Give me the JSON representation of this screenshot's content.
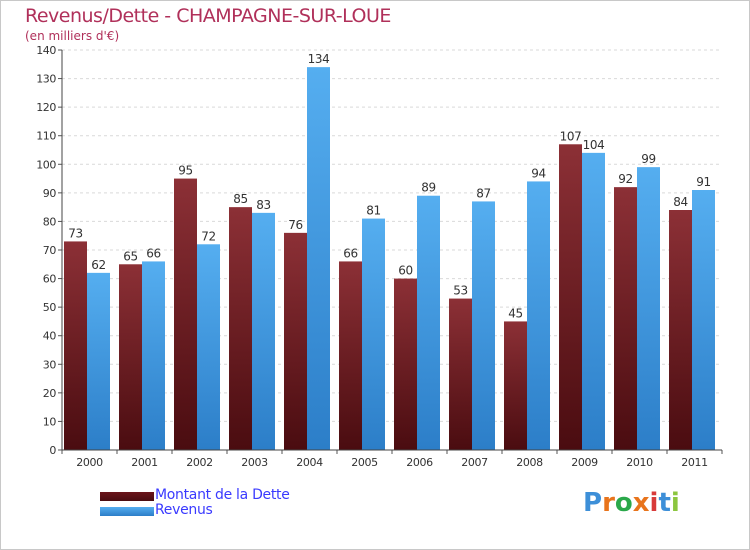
{
  "title": "Revenus/Dette - CHAMPAGNE-SUR-LOUE",
  "subtitle": "(en milliers d'€)",
  "colors": {
    "dette": "#7a1f24",
    "revenus": "#4aa3e8",
    "title": "#b0305a",
    "legend_text": "#3a3aff"
  },
  "chart_data": {
    "type": "bar",
    "title": "Revenus/Dette - CHAMPAGNE-SUR-LOUE",
    "ylabel": "(en milliers d'€)",
    "xlabel": "",
    "ylim": [
      0,
      140
    ],
    "yticks": [
      0,
      10,
      20,
      30,
      40,
      50,
      60,
      70,
      80,
      90,
      100,
      110,
      120,
      130,
      140
    ],
    "categories": [
      "2000",
      "2001",
      "2002",
      "2003",
      "2004",
      "2005",
      "2006",
      "2007",
      "2008",
      "2009",
      "2010",
      "2011"
    ],
    "series": [
      {
        "name": "Montant de la Dette",
        "color": "#7a1f24",
        "values": [
          73,
          65,
          95,
          85,
          76,
          66,
          60,
          53,
          45,
          107,
          92,
          84
        ]
      },
      {
        "name": "Revenus",
        "color": "#4aa3e8",
        "values": [
          62,
          66,
          72,
          83,
          134,
          81,
          89,
          87,
          94,
          104,
          99,
          91
        ]
      }
    ],
    "grid": true,
    "legend": "bottom-left"
  },
  "legend": {
    "dette": "Montant de la Dette",
    "revenus": "Revenus"
  },
  "logo": {
    "letters": [
      "P",
      "r",
      "o",
      "x",
      "i",
      "t",
      "i"
    ],
    "colors": [
      "#3d8fd8",
      "#e8741c",
      "#2aa84a",
      "#e8741c",
      "#d83a3a",
      "#3d8fd8",
      "#8cc63f"
    ]
  }
}
